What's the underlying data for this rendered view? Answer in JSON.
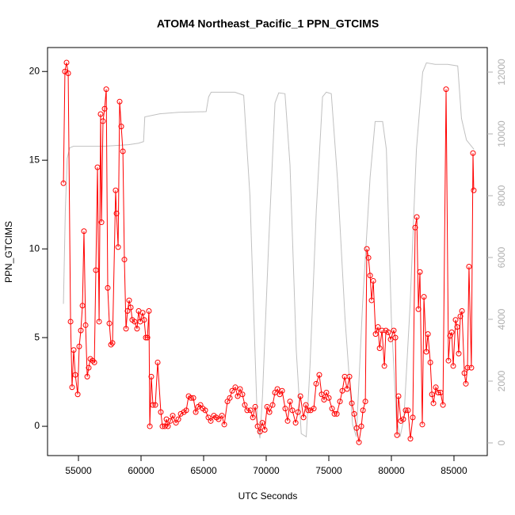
{
  "chart_data": {
    "type": "line",
    "title": "ATOM4 Northeast_Pacific_1 PPN_GTCIMS",
    "xlabel": "UTC Seconds",
    "ylabel": "PPN_GTCIMS",
    "xlim": [
      52530,
      87660
    ],
    "xticks": [
      55000,
      60000,
      65000,
      70000,
      75000,
      80000,
      85000
    ],
    "ylim": [
      -1.65,
      21.35
    ],
    "yticks": [
      0,
      5,
      10,
      15,
      20
    ],
    "y2lim": [
      -410,
      12795
    ],
    "y2ticks": [
      0,
      2000,
      4000,
      6000,
      8000,
      10000,
      12000
    ],
    "series": [
      {
        "name": "PPN_GTCIMS",
        "color": "#ff0000",
        "markers": true,
        "x": [
          53800,
          53920,
          54050,
          54180,
          54370,
          54490,
          54620,
          54750,
          54940,
          55060,
          55190,
          55320,
          55440,
          55570,
          55700,
          55820,
          55950,
          56140,
          56270,
          56390,
          56520,
          56650,
          56770,
          56840,
          56960,
          57090,
          57220,
          57340,
          57470,
          57600,
          57720,
          57970,
          58040,
          58170,
          58290,
          58420,
          58550,
          58670,
          58800,
          58920,
          59050,
          59180,
          59300,
          59490,
          59680,
          59810,
          59940,
          60130,
          60250,
          60380,
          60510,
          60630,
          60700,
          60820,
          60950,
          61140,
          61330,
          61580,
          61710,
          61900,
          62030,
          62150,
          62340,
          62530,
          62790,
          62980,
          63170,
          63420,
          63610,
          63800,
          63990,
          64180,
          64370,
          64560,
          64750,
          64940,
          65130,
          65380,
          65570,
          65820,
          66010,
          66200,
          66460,
          66650,
          66900,
          67090,
          67280,
          67530,
          67720,
          67910,
          68100,
          68290,
          68480,
          68740,
          68930,
          69120,
          69310,
          69500,
          69690,
          69880,
          70070,
          70260,
          70510,
          70700,
          70890,
          71080,
          71270,
          71520,
          71710,
          71900,
          72090,
          72350,
          72540,
          72730,
          72980,
          73170,
          73360,
          73550,
          73800,
          73990,
          74240,
          74430,
          74620,
          74810,
          75000,
          75260,
          75450,
          75640,
          75890,
          76080,
          76270,
          76460,
          76650,
          76840,
          77030,
          77220,
          77410,
          77600,
          77730,
          77920,
          78040,
          78170,
          78300,
          78420,
          78550,
          78740,
          78930,
          79060,
          79250,
          79440,
          79560,
          79750,
          79940,
          80190,
          80320,
          80450,
          80570,
          80760,
          80950,
          81140,
          81330,
          81520,
          81710,
          81900,
          82030,
          82160,
          82280,
          82470,
          82600,
          82790,
          82920,
          83110,
          83240,
          83360,
          83550,
          83740,
          83930,
          84120,
          84370,
          84560,
          84690,
          84820,
          84940,
          85130,
          85260,
          85380,
          85510,
          85640,
          85830,
          85950,
          86080,
          86200,
          86390,
          86520,
          86580
        ],
        "values": [
          13.7,
          20.0,
          20.5,
          19.9,
          5.9,
          2.2,
          4.3,
          2.9,
          1.8,
          4.5,
          5.4,
          6.8,
          11.0,
          5.7,
          2.8,
          3.3,
          3.8,
          3.7,
          3.6,
          8.8,
          14.6,
          5.9,
          17.6,
          11.5,
          17.2,
          17.9,
          19.0,
          7.8,
          5.8,
          4.6,
          4.7,
          13.3,
          12.0,
          10.1,
          18.3,
          16.9,
          15.5,
          9.4,
          5.5,
          6.5,
          7.1,
          6.7,
          6.0,
          5.9,
          5.5,
          6.5,
          5.9,
          6.4,
          6.0,
          5.0,
          5.0,
          6.5,
          0.0,
          2.8,
          1.2,
          1.2,
          3.6,
          0.8,
          0.0,
          0.0,
          0.4,
          0.0,
          0.3,
          0.6,
          0.2,
          0.4,
          0.7,
          0.8,
          0.9,
          1.7,
          1.6,
          1.6,
          0.8,
          1.1,
          1.2,
          1.0,
          0.9,
          0.5,
          0.3,
          0.6,
          0.5,
          0.4,
          0.6,
          0.1,
          1.4,
          1.6,
          2.0,
          2.2,
          1.7,
          2.1,
          1.8,
          1.2,
          0.9,
          0.9,
          0.5,
          1.1,
          0.0,
          -0.3,
          0.2,
          -0.2,
          1.1,
          0.8,
          1.2,
          1.9,
          2.1,
          1.8,
          2.0,
          1.0,
          0.3,
          1.4,
          0.9,
          0.2,
          0.8,
          1.7,
          0.5,
          1.2,
          0.9,
          0.9,
          1.0,
          2.4,
          2.9,
          1.8,
          1.5,
          1.9,
          1.6,
          1.0,
          0.7,
          0.7,
          1.4,
          2.0,
          2.8,
          2.1,
          2.8,
          1.3,
          0.7,
          -0.1,
          -0.9,
          0.0,
          0.9,
          1.4,
          10.0,
          9.5,
          8.5,
          7.1,
          8.2,
          5.2,
          5.6,
          4.4,
          5.4,
          3.4,
          5.4,
          5.3,
          4.9,
          5.4,
          5.0,
          -0.5,
          1.7,
          0.3,
          0.4,
          0.9,
          0.9,
          -0.7,
          0.5,
          11.2,
          11.8,
          6.6,
          8.7,
          0.1,
          7.3,
          4.2,
          5.2,
          3.6,
          1.8,
          1.3,
          2.2,
          1.9,
          1.9,
          1.2,
          19.0,
          3.7,
          5.1,
          5.3,
          3.4,
          6.0,
          5.6,
          4.1,
          6.2,
          6.5,
          3.0,
          2.4,
          3.3,
          9.0,
          3.3,
          15.4,
          13.3
        ]
      },
      {
        "color": "#c0c0c0",
        "axis": "y2",
        "markers": false,
        "x": [
          53800,
          53950,
          54100,
          54300,
          54600,
          57000,
          59000,
          59800,
          60200,
          60300,
          61500,
          63000,
          65200,
          65400,
          65600,
          67000,
          67500,
          68200,
          68700,
          69100,
          69300,
          69500,
          69700,
          70200,
          70700,
          71000,
          71500,
          71900,
          72400,
          72800,
          73200,
          73500,
          74000,
          74500,
          74800,
          75200,
          75700,
          76300,
          76900,
          77200,
          77700,
          78300,
          78700,
          79300,
          79600,
          80000,
          80400,
          80700,
          81000,
          81500,
          82000,
          82500,
          82800,
          83500,
          84500,
          85300,
          85600,
          86000,
          86600
        ],
        "values": [
          4500,
          7500,
          9200,
          9550,
          9600,
          9600,
          9650,
          9700,
          9750,
          10550,
          10650,
          10700,
          10720,
          11200,
          11350,
          11350,
          11350,
          11250,
          8000,
          3000,
          600,
          150,
          1500,
          6500,
          11000,
          11330,
          11300,
          9000,
          3000,
          300,
          200,
          2500,
          7500,
          11200,
          11350,
          11300,
          8500,
          4000,
          600,
          200,
          4500,
          8600,
          10400,
          10400,
          9500,
          4000,
          800,
          200,
          800,
          4500,
          9500,
          12000,
          12300,
          12250,
          12250,
          12200,
          10500,
          9800,
          9500
        ]
      }
    ]
  }
}
